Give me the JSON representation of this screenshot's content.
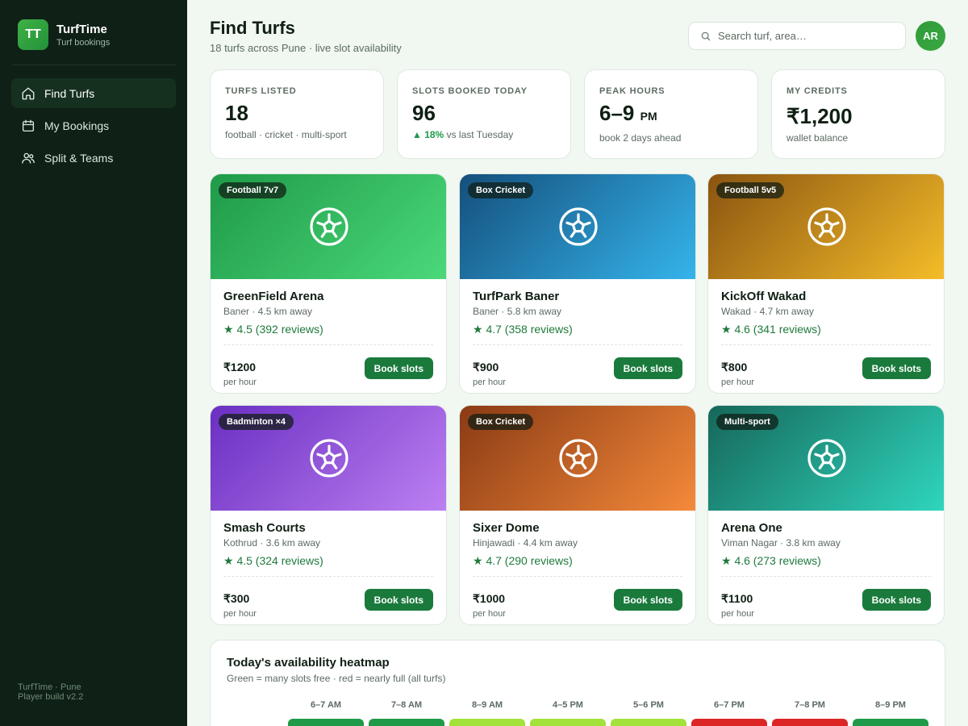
{
  "brand": {
    "logo": "TT",
    "name": "TurfTime",
    "subtitle": "Turf bookings"
  },
  "nav": [
    {
      "label": "Find Turfs",
      "icon": "home-icon",
      "active": true
    },
    {
      "label": "My Bookings",
      "icon": "calendar-icon",
      "active": false
    },
    {
      "label": "Split & Teams",
      "icon": "users-icon",
      "active": false
    }
  ],
  "footer": {
    "line1": "TurfTime · Pune",
    "line2": "Player build v2.2"
  },
  "header": {
    "title": "Find Turfs",
    "subtitle": "18 turfs across Pune · live slot availability",
    "search_placeholder": "Search turf, area…",
    "avatar": "AR"
  },
  "stats": [
    {
      "label": "TURFS LISTED",
      "value": "18",
      "note": "football · cricket · multi-sport"
    },
    {
      "label": "SLOTS BOOKED TODAY",
      "value": "96",
      "trend": "▲ 18%",
      "note": "vs last Tuesday"
    },
    {
      "label": "PEAK HOURS",
      "value": "6–9",
      "unit": "PM",
      "note": "book 2 days ahead"
    },
    {
      "label": "MY CREDITS",
      "value": "₹1,200",
      "note": "wallet balance"
    }
  ],
  "turfs": [
    {
      "tag": "Football 7v7",
      "name": "GreenField Arena",
      "location": "Baner · 4.5 km away",
      "rating": "★ 4.5 (392 reviews)",
      "price": "₹1200",
      "per": "per hour",
      "button": "Book slots",
      "colors": [
        "#1f9a48",
        "#4bd97a"
      ]
    },
    {
      "tag": "Box Cricket",
      "name": "TurfPark Baner",
      "location": "Baner · 5.8 km away",
      "rating": "★ 4.7 (358 reviews)",
      "price": "₹900",
      "per": "per hour",
      "button": "Book slots",
      "colors": [
        "#144f7c",
        "#35b5ec"
      ]
    },
    {
      "tag": "Football 5v5",
      "name": "KickOff Wakad",
      "location": "Wakad · 4.7 km away",
      "rating": "★ 4.6 (341 reviews)",
      "price": "₹800",
      "per": "per hour",
      "button": "Book slots",
      "colors": [
        "#8a5411",
        "#f5bd28"
      ]
    },
    {
      "tag": "Badminton ×4",
      "name": "Smash Courts",
      "location": "Kothrud · 3.6 km away",
      "rating": "★ 4.5 (324 reviews)",
      "price": "₹300",
      "per": "per hour",
      "button": "Book slots",
      "colors": [
        "#6a2fc2",
        "#bd80f2"
      ]
    },
    {
      "tag": "Box Cricket",
      "name": "Sixer Dome",
      "location": "Hinjawadi · 4.4 km away",
      "rating": "★ 4.7 (290 reviews)",
      "price": "₹1000",
      "per": "per hour",
      "button": "Book slots",
      "colors": [
        "#8a3a14",
        "#f58a3a"
      ]
    },
    {
      "tag": "Multi-sport",
      "name": "Arena One",
      "location": "Viman Nagar · 3.8 km away",
      "rating": "★ 4.6 (273 reviews)",
      "price": "₹1100",
      "per": "per hour",
      "button": "Book slots",
      "colors": [
        "#16675a",
        "#2fd6bd"
      ]
    }
  ],
  "heatmap": {
    "title": "Today's availability heatmap",
    "subtitle": "Green = many slots free · red = nearly full (all turfs)",
    "slots": [
      "6–7 AM",
      "7–8 AM",
      "8–9 AM",
      "4–5 PM",
      "5–6 PM",
      "6–7 PM",
      "7–8 PM",
      "8–9 PM"
    ],
    "colors": [
      "#1f9a48",
      "#1f9a48",
      "#a3e23a",
      "#a3e23a",
      "#a3e23a",
      "#dc2626",
      "#dc2626",
      "#1f9a48"
    ]
  }
}
